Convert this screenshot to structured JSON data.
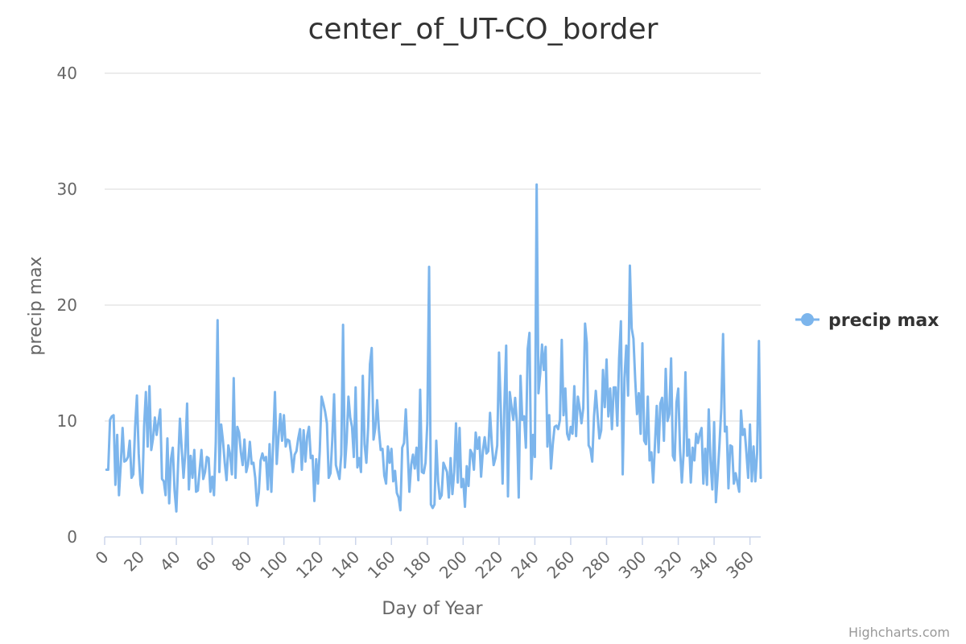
{
  "chart_data": {
    "type": "line",
    "title": "center_of_UT-CO_border",
    "xlabel": "Day of Year",
    "ylabel": "precip max",
    "xlim": [
      0,
      366
    ],
    "ylim": [
      0,
      40
    ],
    "x_ticks": [
      0,
      20,
      40,
      60,
      80,
      100,
      120,
      140,
      160,
      180,
      200,
      220,
      240,
      260,
      280,
      300,
      320,
      340,
      360
    ],
    "y_ticks": [
      0,
      10,
      20,
      30,
      40
    ],
    "grid": "horizontal",
    "legend_position": "right",
    "series": [
      {
        "name": "precip max",
        "color": "#7cb5ec",
        "x_start": 1,
        "values": [
          5.8,
          5.8,
          10.1,
          10.4,
          10.5,
          4.5,
          8.8,
          3.6,
          6.3,
          9.4,
          6.5,
          6.6,
          6.9,
          8.3,
          5.1,
          5.4,
          9.5,
          12.2,
          7.2,
          4.5,
          3.8,
          9.5,
          12.5,
          7.8,
          13.0,
          7.5,
          8.5,
          10.3,
          8.8,
          9.9,
          11.0,
          5.0,
          4.8,
          3.6,
          8.5,
          2.9,
          6.7,
          7.7,
          4.0,
          2.2,
          6.4,
          10.2,
          7.6,
          5.1,
          7.3,
          11.5,
          4.1,
          7.0,
          5.1,
          7.5,
          3.9,
          4.0,
          5.8,
          7.5,
          5.0,
          5.6,
          6.9,
          6.8,
          3.9,
          5.2,
          3.6,
          8.2,
          18.7,
          5.6,
          9.7,
          8.3,
          6.4,
          4.9,
          7.9,
          7.1,
          5.4,
          13.7,
          5.1,
          9.5,
          9.0,
          7.3,
          6.2,
          8.4,
          5.6,
          6.3,
          8.2,
          6.3,
          6.4,
          5.1,
          2.7,
          3.8,
          6.6,
          7.2,
          6.6,
          6.9,
          4.1,
          8.0,
          3.9,
          8.1,
          12.5,
          6.3,
          8.7,
          10.6,
          8.3,
          10.5,
          7.8,
          8.4,
          8.3,
          7.2,
          5.6,
          7.1,
          7.4,
          8.5,
          9.3,
          5.8,
          9.2,
          6.5,
          8.7,
          9.5,
          6.8,
          7.0,
          3.1,
          6.7,
          4.6,
          7.4,
          12.1,
          11.5,
          10.8,
          9.8,
          5.1,
          5.5,
          8.4,
          12.3,
          6.2,
          5.6,
          5.0,
          7.1,
          18.3,
          6.0,
          8.3,
          12.1,
          10.3,
          9.5,
          6.9,
          12.9,
          6.0,
          6.8,
          5.6,
          13.9,
          8.0,
          6.4,
          9.5,
          14.9,
          16.3,
          8.4,
          9.4,
          11.8,
          9.2,
          7.5,
          7.6,
          5.3,
          4.6,
          7.8,
          6.4,
          7.6,
          4.8,
          5.7,
          3.8,
          3.4,
          2.3,
          7.7,
          8.1,
          11.0,
          7.6,
          3.9,
          6.2,
          7.1,
          5.9,
          7.7,
          4.9,
          12.7,
          5.6,
          5.5,
          6.4,
          9.8,
          23.3,
          2.8,
          2.5,
          2.8,
          8.3,
          4.8,
          3.3,
          3.6,
          6.4,
          6.0,
          5.6,
          3.4,
          6.8,
          3.7,
          5.6,
          9.8,
          4.7,
          9.4,
          4.3,
          5.0,
          2.6,
          6.1,
          4.4,
          7.5,
          7.2,
          5.8,
          9.0,
          7.6,
          8.6,
          5.2,
          7.4,
          8.6,
          7.2,
          7.4,
          10.7,
          8.0,
          6.2,
          6.8,
          7.9,
          15.9,
          11.0,
          4.6,
          11.4,
          16.5,
          3.5,
          12.5,
          11.2,
          10.1,
          12.0,
          9.8,
          3.4,
          13.9,
          10.1,
          10.4,
          7.7,
          16.2,
          17.6,
          5.0,
          8.8,
          6.9,
          30.4,
          12.4,
          14.1,
          16.6,
          14.4,
          16.4,
          7.8,
          10.5,
          5.9,
          8.0,
          9.5,
          9.6,
          9.3,
          10.1,
          17.0,
          10.5,
          12.8,
          8.9,
          8.4,
          9.5,
          8.9,
          13.0,
          8.7,
          12.1,
          11.1,
          9.8,
          11.1,
          18.4,
          16.7,
          7.9,
          7.6,
          6.5,
          10.4,
          12.6,
          10.5,
          8.5,
          9.2,
          14.4,
          11.2,
          15.3,
          10.4,
          12.8,
          9.3,
          12.9,
          12.9,
          9.6,
          15.4,
          18.6,
          5.4,
          13.7,
          16.5,
          12.2,
          23.4,
          18.0,
          17.1,
          13.5,
          10.6,
          12.4,
          8.9,
          16.7,
          8.3,
          8.0,
          12.1,
          6.6,
          7.3,
          4.7,
          8.0,
          11.3,
          7.3,
          11.5,
          12.0,
          8.3,
          14.5,
          10.0,
          10.6,
          15.4,
          7.0,
          6.6,
          11.6,
          12.8,
          7.5,
          4.7,
          7.3,
          14.2,
          7.0,
          8.4,
          4.7,
          7.7,
          6.6,
          8.9,
          8.1,
          8.9,
          9.4,
          4.6,
          7.6,
          4.5,
          11.0,
          6.5,
          4.1,
          9.9,
          3.0,
          5.4,
          8.0,
          11.1,
          17.5,
          9.1,
          9.5,
          4.2,
          7.9,
          7.8,
          4.6,
          5.5,
          4.7,
          3.9,
          10.9,
          8.8,
          9.3,
          7.3,
          5.1,
          9.7,
          4.8,
          7.8,
          4.8,
          7.3,
          16.9,
          5.1
        ]
      }
    ]
  },
  "credits": "Highcharts.com"
}
